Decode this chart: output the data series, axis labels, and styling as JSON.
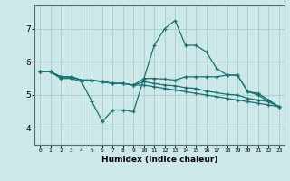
{
  "background_color": "#cce8e8",
  "grid_color": "#aacccc",
  "line_color": "#1a7070",
  "xlabel": "Humidex (Indice chaleur)",
  "xlim": [
    -0.5,
    23.5
  ],
  "ylim": [
    3.5,
    7.7
  ],
  "yticks": [
    4,
    5,
    6,
    7
  ],
  "xticks": [
    0,
    1,
    2,
    3,
    4,
    5,
    6,
    7,
    8,
    9,
    10,
    11,
    12,
    13,
    14,
    15,
    16,
    17,
    18,
    19,
    20,
    21,
    22,
    23
  ],
  "series": [
    {
      "x": [
        0,
        1,
        2,
        3,
        4,
        5,
        6,
        7,
        8,
        9,
        10,
        11,
        12,
        13,
        14,
        15,
        16,
        17,
        18,
        19,
        20,
        21,
        22,
        23
      ],
      "y": [
        5.7,
        5.7,
        5.5,
        5.5,
        5.4,
        4.8,
        4.2,
        4.55,
        4.55,
        4.5,
        5.5,
        6.5,
        7.0,
        7.25,
        6.5,
        6.5,
        6.3,
        5.8,
        5.6,
        5.6,
        5.1,
        5.0,
        4.8,
        4.65
      ]
    },
    {
      "x": [
        0,
        1,
        2,
        3,
        4,
        5,
        6,
        7,
        8,
        9,
        10,
        11,
        12,
        13,
        14,
        15,
        16,
        17,
        18,
        19,
        20,
        21,
        22,
        23
      ],
      "y": [
        5.7,
        5.7,
        5.55,
        5.55,
        5.45,
        5.45,
        5.4,
        5.35,
        5.35,
        5.3,
        5.5,
        5.5,
        5.48,
        5.45,
        5.55,
        5.55,
        5.55,
        5.55,
        5.6,
        5.6,
        5.1,
        5.05,
        4.85,
        4.65
      ]
    },
    {
      "x": [
        0,
        1,
        2,
        3,
        4,
        5,
        6,
        7,
        8,
        9,
        10,
        11,
        12,
        13,
        14,
        15,
        16,
        17,
        18,
        19,
        20,
        21,
        22,
        23
      ],
      "y": [
        5.7,
        5.7,
        5.55,
        5.55,
        5.45,
        5.45,
        5.4,
        5.35,
        5.35,
        5.3,
        5.4,
        5.35,
        5.3,
        5.28,
        5.22,
        5.2,
        5.12,
        5.07,
        5.02,
        5.0,
        4.9,
        4.85,
        4.8,
        4.65
      ]
    },
    {
      "x": [
        0,
        1,
        2,
        3,
        4,
        5,
        6,
        7,
        8,
        9,
        10,
        11,
        12,
        13,
        14,
        15,
        16,
        17,
        18,
        19,
        20,
        21,
        22,
        23
      ],
      "y": [
        5.7,
        5.7,
        5.55,
        5.55,
        5.45,
        5.45,
        5.4,
        5.35,
        5.35,
        5.3,
        5.3,
        5.25,
        5.2,
        5.15,
        5.1,
        5.05,
        5.0,
        4.95,
        4.9,
        4.85,
        4.8,
        4.75,
        4.7,
        4.65
      ]
    }
  ]
}
